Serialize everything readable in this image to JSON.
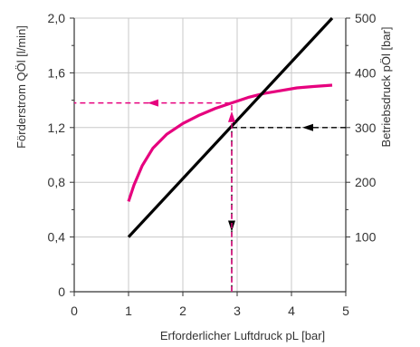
{
  "chart_data": {
    "type": "line",
    "xlabel": "Erforderlicher Luftdruck pL [bar]",
    "ylabel_left": "Förderstrom QÖl [l/min]",
    "ylabel_right": "Betriebsdruck pÖl [bar]",
    "xlim": [
      0,
      5
    ],
    "ylim_left": [
      0,
      2.0
    ],
    "ylim_right": [
      0,
      500
    ],
    "x_ticks": [
      "0",
      "1",
      "2",
      "3",
      "4",
      "5"
    ],
    "y_left_ticks": [
      "0",
      "0,4",
      "0,8",
      "1,2",
      "1,6",
      "2,0"
    ],
    "y_right_ticks": [
      "100",
      "200",
      "300",
      "400",
      "500"
    ],
    "grid": true,
    "series": [
      {
        "axis": "left",
        "color": "#e6007e",
        "points": [
          [
            1.0,
            0.66
          ],
          [
            1.1,
            0.78
          ],
          [
            1.25,
            0.92
          ],
          [
            1.45,
            1.05
          ],
          [
            1.7,
            1.15
          ],
          [
            2.0,
            1.23
          ],
          [
            2.3,
            1.29
          ],
          [
            2.6,
            1.34
          ],
          [
            2.9,
            1.38
          ],
          [
            3.2,
            1.42
          ],
          [
            3.5,
            1.45
          ],
          [
            3.8,
            1.47
          ],
          [
            4.1,
            1.49
          ],
          [
            4.4,
            1.5
          ],
          [
            4.75,
            1.51
          ]
        ]
      },
      {
        "axis": "right",
        "color": "#000000",
        "points": [
          [
            1.0,
            100
          ],
          [
            4.75,
            500
          ]
        ]
      }
    ],
    "annotations": [
      {
        "color": "#000000",
        "points": [
          [
            5.0,
            300
          ],
          [
            2.9,
            300
          ],
          [
            2.9,
            0
          ]
        ],
        "axes": [
          "right",
          "right",
          "right"
        ],
        "arrows": [
          [
            4.3,
            300,
            "left"
          ],
          [
            2.9,
            120,
            "down"
          ]
        ]
      },
      {
        "color": "#e6007e",
        "points": [
          [
            2.9,
            0
          ],
          [
            2.9,
            1.38
          ],
          [
            0,
            1.38
          ]
        ],
        "axes": [
          "left",
          "left",
          "left"
        ],
        "arrows": [
          [
            2.9,
            1.28,
            "up"
          ],
          [
            1.45,
            1.38,
            "left"
          ]
        ]
      }
    ]
  }
}
